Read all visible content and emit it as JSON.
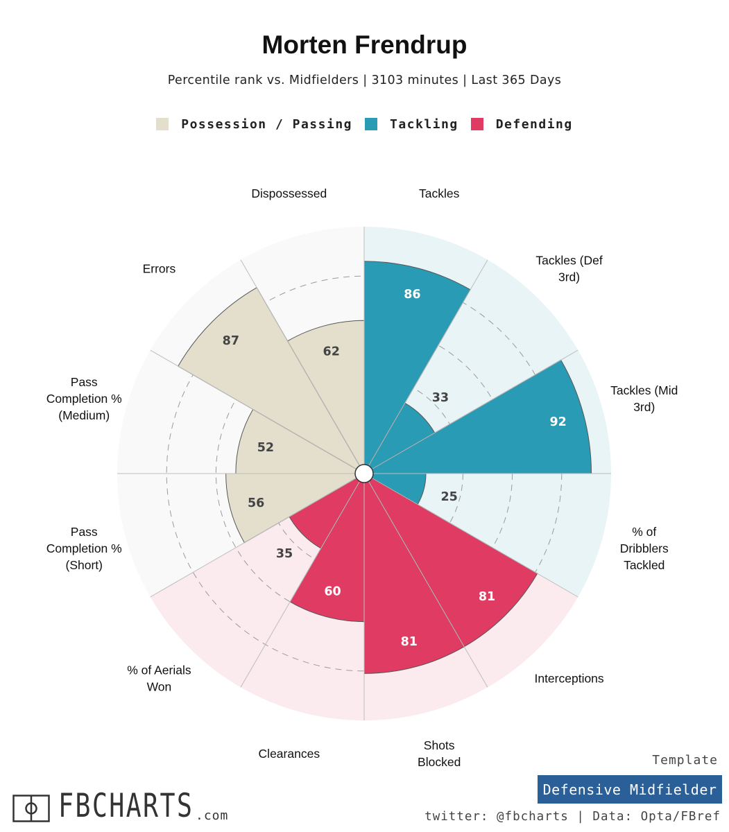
{
  "header": {
    "title": "Morten Frendrup",
    "subtitle": "Percentile rank vs. Midfielders | 3103 minutes | Last 365 Days"
  },
  "legend": [
    {
      "label": "Possession / Passing",
      "color": "#e4dfcd"
    },
    {
      "label": "Tackling",
      "color": "#2a9bb5"
    },
    {
      "label": "Defending",
      "color": "#e03c63"
    }
  ],
  "chart_data": {
    "type": "polar-bar",
    "title": "Morten Frendrup",
    "rlim": [
      0,
      100
    ],
    "gridlines": [
      20,
      40,
      60,
      80
    ],
    "groups": {
      "Possession / Passing": {
        "color": "#e4dfcd",
        "background": "#f9f9f9",
        "text_color": "#444444"
      },
      "Tackling": {
        "color": "#2a9bb5",
        "background": "#e8f4f6",
        "text_color": "#ffffff"
      },
      "Defending": {
        "color": "#e03c63",
        "background": "#fbeaee",
        "text_color": "#ffffff"
      }
    },
    "categories": [
      {
        "label": "Tackles",
        "value": 86,
        "group": "Tackling"
      },
      {
        "label": "Tackles (Def 3rd)",
        "value": 33,
        "group": "Tackling"
      },
      {
        "label": "Tackles (Mid 3rd)",
        "value": 92,
        "group": "Tackling"
      },
      {
        "label": "% of Dribblers Tackled",
        "value": 25,
        "group": "Tackling"
      },
      {
        "label": "Interceptions",
        "value": 81,
        "group": "Defending"
      },
      {
        "label": "Shots Blocked",
        "value": 81,
        "group": "Defending"
      },
      {
        "label": "Clearances",
        "value": 60,
        "group": "Defending"
      },
      {
        "label": "% of Aerials Won",
        "value": 35,
        "group": "Defending"
      },
      {
        "label": "Pass Completion % (Short)",
        "value": 56,
        "group": "Possession / Passing"
      },
      {
        "label": "Pass Completion % (Medium)",
        "value": 52,
        "group": "Possession / Passing"
      },
      {
        "label": "Errors",
        "value": 87,
        "group": "Possession / Passing"
      },
      {
        "label": "Dispossessed",
        "value": 62,
        "group": "Possession / Passing"
      }
    ]
  },
  "footer": {
    "logo_text": "FBCHARTS",
    "logo_suffix": ".com",
    "template_label": "Template",
    "template_name": "Defensive Midfielder",
    "template_color": "#2b5f98",
    "credit": "twitter: @fbcharts | Data: Opta/FBref"
  }
}
